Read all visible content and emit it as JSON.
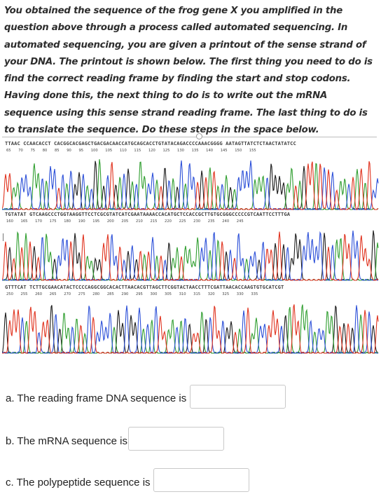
{
  "instructions": {
    "text": "You obtained the sequence of the frog gene X you amplified in the question above through a process called automated sequencing. In automated sequencing, you are given a printout of the sense strand of your DNA.  The printout is shown below. The first thing you need to do is find the correct reading frame by finding the start and stop codons. Having done this, the next thing to do is to write out the mRNA sequence using this sense strand reading frame. The last thing to do is to translate the sequence. Do these steps in the space below."
  },
  "chromatogram": {
    "rows": [
      {
        "sequence": "TTAAC CCAACACCT CACGGCACGAGCTGACGACAACCATGCAGCACCTGTATACAGACCCCAAACGGGG AATAGTTATCTCTAACTATATCC",
        "positions": "65 70 75 80 85 90 95 100 105 110 115 120 125 130 135 140 145 150 155"
      },
      {
        "sequence": "TGTATAT GTCAAGCCCTGGTAAGGTTCCTCGCGTATCATCGAATAAAACCACATGCTCCACCGCTTGTGCGGGCCCCCGTCAATTCCTTTGA",
        "positions": "160 165 170 175 180 190 195 200 205 210 215 220 225 230 235 240 245"
      },
      {
        "sequence": "GTTTCAT TCTTGCGAACATACTCCCCAGGCGGCACACTTAACACGTTAGCTTCGGTACTAACCTTTCGATTAACACCAAGTGTGCATCGT",
        "positions": "250 255 260 265 270 275 280 285 290 295 300 305 310 315 320 325 330 335"
      }
    ],
    "trace_colors": {
      "A": "#2f9e2f",
      "C": "#2b4fd8",
      "G": "#1b1b1b",
      "T": "#e0321e"
    }
  },
  "questions": [
    {
      "label": "a. The reading frame DNA sequence is",
      "value": ""
    },
    {
      "label": "b. The mRNA sequence is",
      "value": ""
    },
    {
      "label": "c. The polypeptide sequence is",
      "value": ""
    }
  ]
}
